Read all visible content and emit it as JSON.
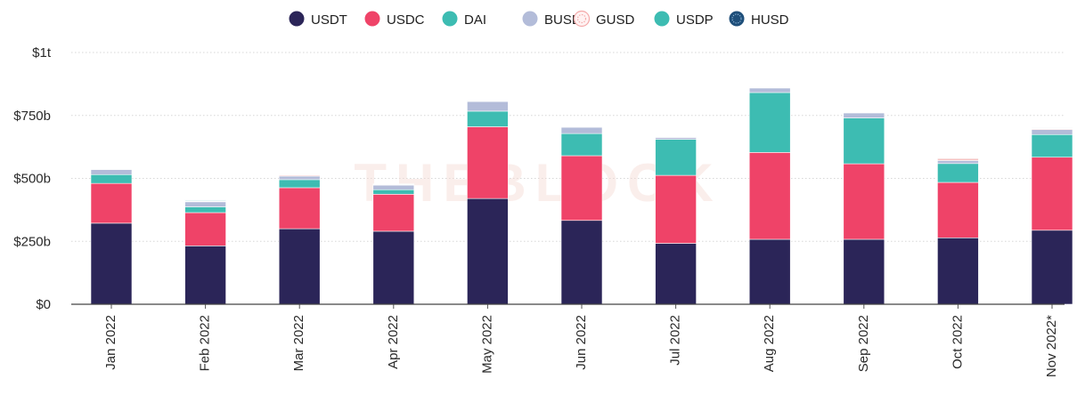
{
  "chart_data": {
    "type": "bar",
    "stacked": true,
    "categories": [
      "Jan 2022",
      "Feb 2022",
      "Mar 2022",
      "Apr 2022",
      "May 2022",
      "Jun 2022",
      "Jul 2022",
      "Aug 2022",
      "Sep 2022",
      "Oct 2022",
      "Nov 2022*"
    ],
    "series": [
      {
        "name": "USDT",
        "color": "#2b2558",
        "values": [
          322,
          232,
          300,
          290,
          420,
          333,
          242,
          258,
          258,
          264,
          294
        ]
      },
      {
        "name": "USDC",
        "color": "#ef4368",
        "values": [
          158,
          132,
          163,
          147,
          285,
          257,
          270,
          345,
          300,
          220,
          290
        ]
      },
      {
        "name": "DAI",
        "color": "#3dbcb2",
        "values": [
          35,
          23,
          32,
          18,
          62,
          88,
          143,
          238,
          182,
          75,
          90
        ]
      },
      {
        "name": "BUSD",
        "color": "#b3bcd9",
        "values": [
          20,
          20,
          14,
          18,
          38,
          25,
          8,
          18,
          20,
          12,
          20
        ]
      },
      {
        "name": "GUSD",
        "color": "#f7c3c3",
        "values": [
          2,
          2,
          4,
          2,
          2,
          2,
          1,
          2,
          2,
          8,
          3
        ]
      },
      {
        "name": "USDP",
        "color": "#3dbcb2",
        "values": [
          2,
          3,
          2,
          2,
          2,
          2,
          1,
          2,
          2,
          2,
          2
        ]
      },
      {
        "name": "HUSD",
        "color": "#1f4f7a",
        "values": [
          1,
          2,
          1,
          1,
          1,
          1,
          1,
          1,
          1,
          1,
          1
        ]
      }
    ],
    "y_ticks": [
      {
        "value": 0,
        "label": "$0"
      },
      {
        "value": 250,
        "label": "$250b"
      },
      {
        "value": 500,
        "label": "$500b"
      },
      {
        "value": 750,
        "label": "$750b"
      },
      {
        "value": 1000,
        "label": "$1t"
      }
    ],
    "ylim": [
      0,
      1000
    ],
    "grid": true,
    "legend_position": "top-center",
    "watermark": "THEBLOCK",
    "title": "",
    "xlabel": "",
    "ylabel": ""
  }
}
